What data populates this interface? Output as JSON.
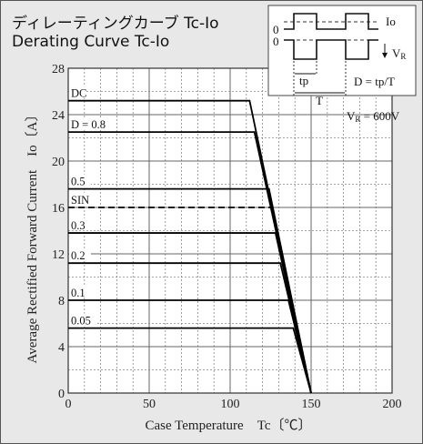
{
  "title_jp": "ディレーティングカーブ Tc-Io",
  "title_en": "Derating Curve Tc-Io",
  "chart_data": {
    "type": "line",
    "title": "Derating Curve Tc-Io",
    "xlabel": "Case Temperature　Tc〔℃〕",
    "ylabel": "Average Rectified Forward Current　Io〔A〕",
    "xlim": [
      0,
      200
    ],
    "ylim": [
      0,
      28
    ],
    "xticks": [
      0,
      50,
      100,
      150,
      200
    ],
    "yticks": [
      0,
      4,
      8,
      12,
      16,
      20,
      24,
      28
    ],
    "grid": true,
    "series": [
      {
        "name": "DC",
        "style": "solid",
        "x": [
          0,
          112,
          150
        ],
        "y": [
          25.2,
          25.2,
          0
        ]
      },
      {
        "name": "D = 0.8",
        "style": "solid",
        "x": [
          0,
          115,
          150
        ],
        "y": [
          22.5,
          22.5,
          0
        ]
      },
      {
        "name": "0.5",
        "style": "solid",
        "x": [
          0,
          124,
          150
        ],
        "y": [
          17.6,
          17.6,
          0
        ]
      },
      {
        "name": "SIN",
        "style": "dashed",
        "x": [
          0,
          126,
          150
        ],
        "y": [
          16.0,
          16.0,
          0
        ]
      },
      {
        "name": "0.3",
        "style": "solid",
        "x": [
          0,
          128,
          150
        ],
        "y": [
          13.8,
          13.8,
          0
        ]
      },
      {
        "name": "0.2",
        "style": "solid",
        "x": [
          0,
          131,
          150
        ],
        "y": [
          11.2,
          11.2,
          0
        ]
      },
      {
        "name": "0.1",
        "style": "solid",
        "x": [
          0,
          136,
          150
        ],
        "y": [
          8.0,
          8.0,
          0
        ]
      },
      {
        "name": "0.05",
        "style": "solid",
        "x": [
          0,
          139,
          150
        ],
        "y": [
          5.6,
          5.6,
          0
        ]
      }
    ],
    "inset": {
      "zero_label": "0",
      "io_label": "Io",
      "vr_label": "V",
      "vr_sub": "R",
      "tp_label": "tp",
      "t_label": "T",
      "formula": "D = tp/T"
    },
    "annotation": {
      "prefix": "V",
      "sub": "R",
      "suffix": " = 600V"
    }
  }
}
